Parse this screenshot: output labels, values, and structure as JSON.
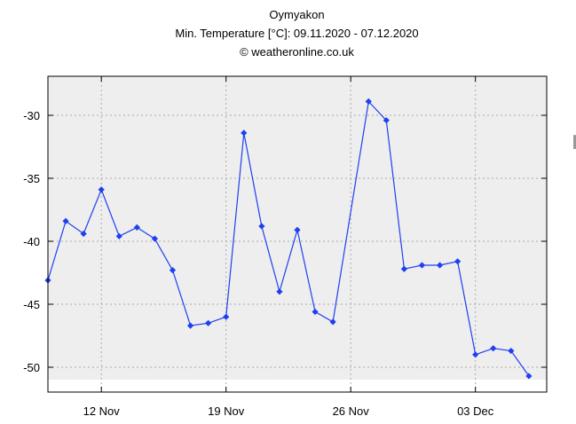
{
  "chart_data": {
    "type": "line",
    "title": "Oymyakon",
    "subtitle": "Min. Temperature [°C]: 09.11.2020 - 07.12.2020",
    "credit": "© weatheronline.co.uk",
    "x_tick_labels": [
      "12 Nov",
      "19 Nov",
      "26 Nov",
      "03 Dec"
    ],
    "y_tick_labels": [
      "-30",
      "-35",
      "-40",
      "-45",
      "-50"
    ],
    "y_ticks": [
      -30,
      -35,
      -40,
      -45,
      -50
    ],
    "ylim": [
      -51,
      -27
    ],
    "xlim": [
      "2020-11-09",
      "2020-12-07"
    ],
    "grid": true,
    "series": [
      {
        "color": "#1f3ff0",
        "marker": "diamond",
        "points": [
          {
            "x": "2020-11-09",
            "y": -43.1
          },
          {
            "x": "2020-11-10",
            "y": -38.4
          },
          {
            "x": "2020-11-11",
            "y": -39.4
          },
          {
            "x": "2020-11-12",
            "y": -35.9
          },
          {
            "x": "2020-11-13",
            "y": -39.6
          },
          {
            "x": "2020-11-14",
            "y": -38.9
          },
          {
            "x": "2020-11-15",
            "y": -39.8
          },
          {
            "x": "2020-11-16",
            "y": -42.3
          },
          {
            "x": "2020-11-17",
            "y": -46.7
          },
          {
            "x": "2020-11-18",
            "y": -46.5
          },
          {
            "x": "2020-11-19",
            "y": -46.0
          },
          {
            "x": "2020-11-20",
            "y": -31.4
          },
          {
            "x": "2020-11-21",
            "y": -38.8
          },
          {
            "x": "2020-11-22",
            "y": -44.0
          },
          {
            "x": "2020-11-23",
            "y": -39.1
          },
          {
            "x": "2020-11-24",
            "y": -45.6
          },
          {
            "x": "2020-11-25",
            "y": -46.4
          },
          {
            "x": "2020-11-27",
            "y": -28.9
          },
          {
            "x": "2020-11-28",
            "y": -30.4
          },
          {
            "x": "2020-11-29",
            "y": -42.2
          },
          {
            "x": "2020-11-30",
            "y": -41.9
          },
          {
            "x": "2020-12-01",
            "y": -41.9
          },
          {
            "x": "2020-12-02",
            "y": -41.6
          },
          {
            "x": "2020-12-03",
            "y": -49.0
          },
          {
            "x": "2020-12-04",
            "y": -48.5
          },
          {
            "x": "2020-12-05",
            "y": -48.7
          },
          {
            "x": "2020-12-06",
            "y": -50.7
          }
        ]
      }
    ]
  }
}
